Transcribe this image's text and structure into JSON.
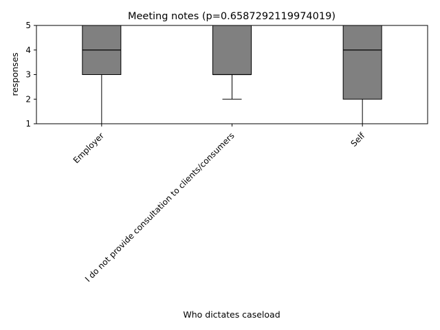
{
  "chart_data": {
    "type": "box",
    "title": "Meeting notes (p=0.6587292119974019)",
    "xlabel": "Who dictates caseload",
    "ylabel": "responses",
    "ylim": [
      1,
      5
    ],
    "yticks": [
      "1",
      "2",
      "3",
      "4",
      "5"
    ],
    "categories": [
      "Employer",
      "I do not provide consultation to clients/consumers",
      "Self"
    ],
    "boxes": [
      {
        "whisker_low": 1,
        "q1": 3,
        "median": 4,
        "q3": 5,
        "whisker_high": 5
      },
      {
        "whisker_low": 2,
        "q1": 3,
        "median": 3,
        "q3": 5,
        "whisker_high": 5
      },
      {
        "whisker_low": 1,
        "q1": 2,
        "median": 4,
        "q3": 5,
        "whisker_high": 5
      }
    ],
    "box_color": "#808080",
    "grid": false,
    "legend": "none"
  }
}
